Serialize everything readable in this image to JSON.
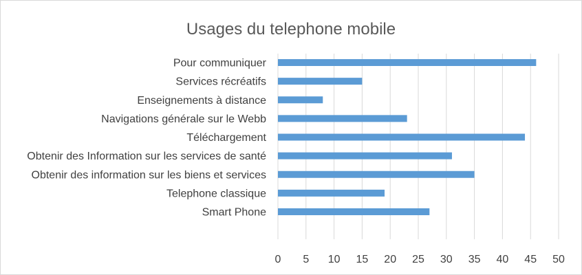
{
  "chart_data": {
    "type": "bar",
    "orientation": "horizontal",
    "title": "Usages du telephone mobile",
    "categories": [
      "Pour communiquer",
      "Services récréatifs",
      "Enseignements à distance",
      "Navigations générale sur le Webb",
      "Téléchargement",
      "Obtenir des Information sur les services de santé",
      "Obtenir des information sur les biens et services",
      "Telephone classique",
      "Smart Phone"
    ],
    "values": [
      46,
      15,
      8,
      23,
      44,
      31,
      35,
      19,
      27
    ],
    "xlim": [
      0,
      50
    ],
    "xticks": [
      "0",
      "5",
      "10",
      "15",
      "20",
      "25",
      "30",
      "35",
      "40",
      "45",
      "50"
    ],
    "grid": "vertical",
    "legend": "none",
    "bar_color": "#5b9bd5"
  }
}
